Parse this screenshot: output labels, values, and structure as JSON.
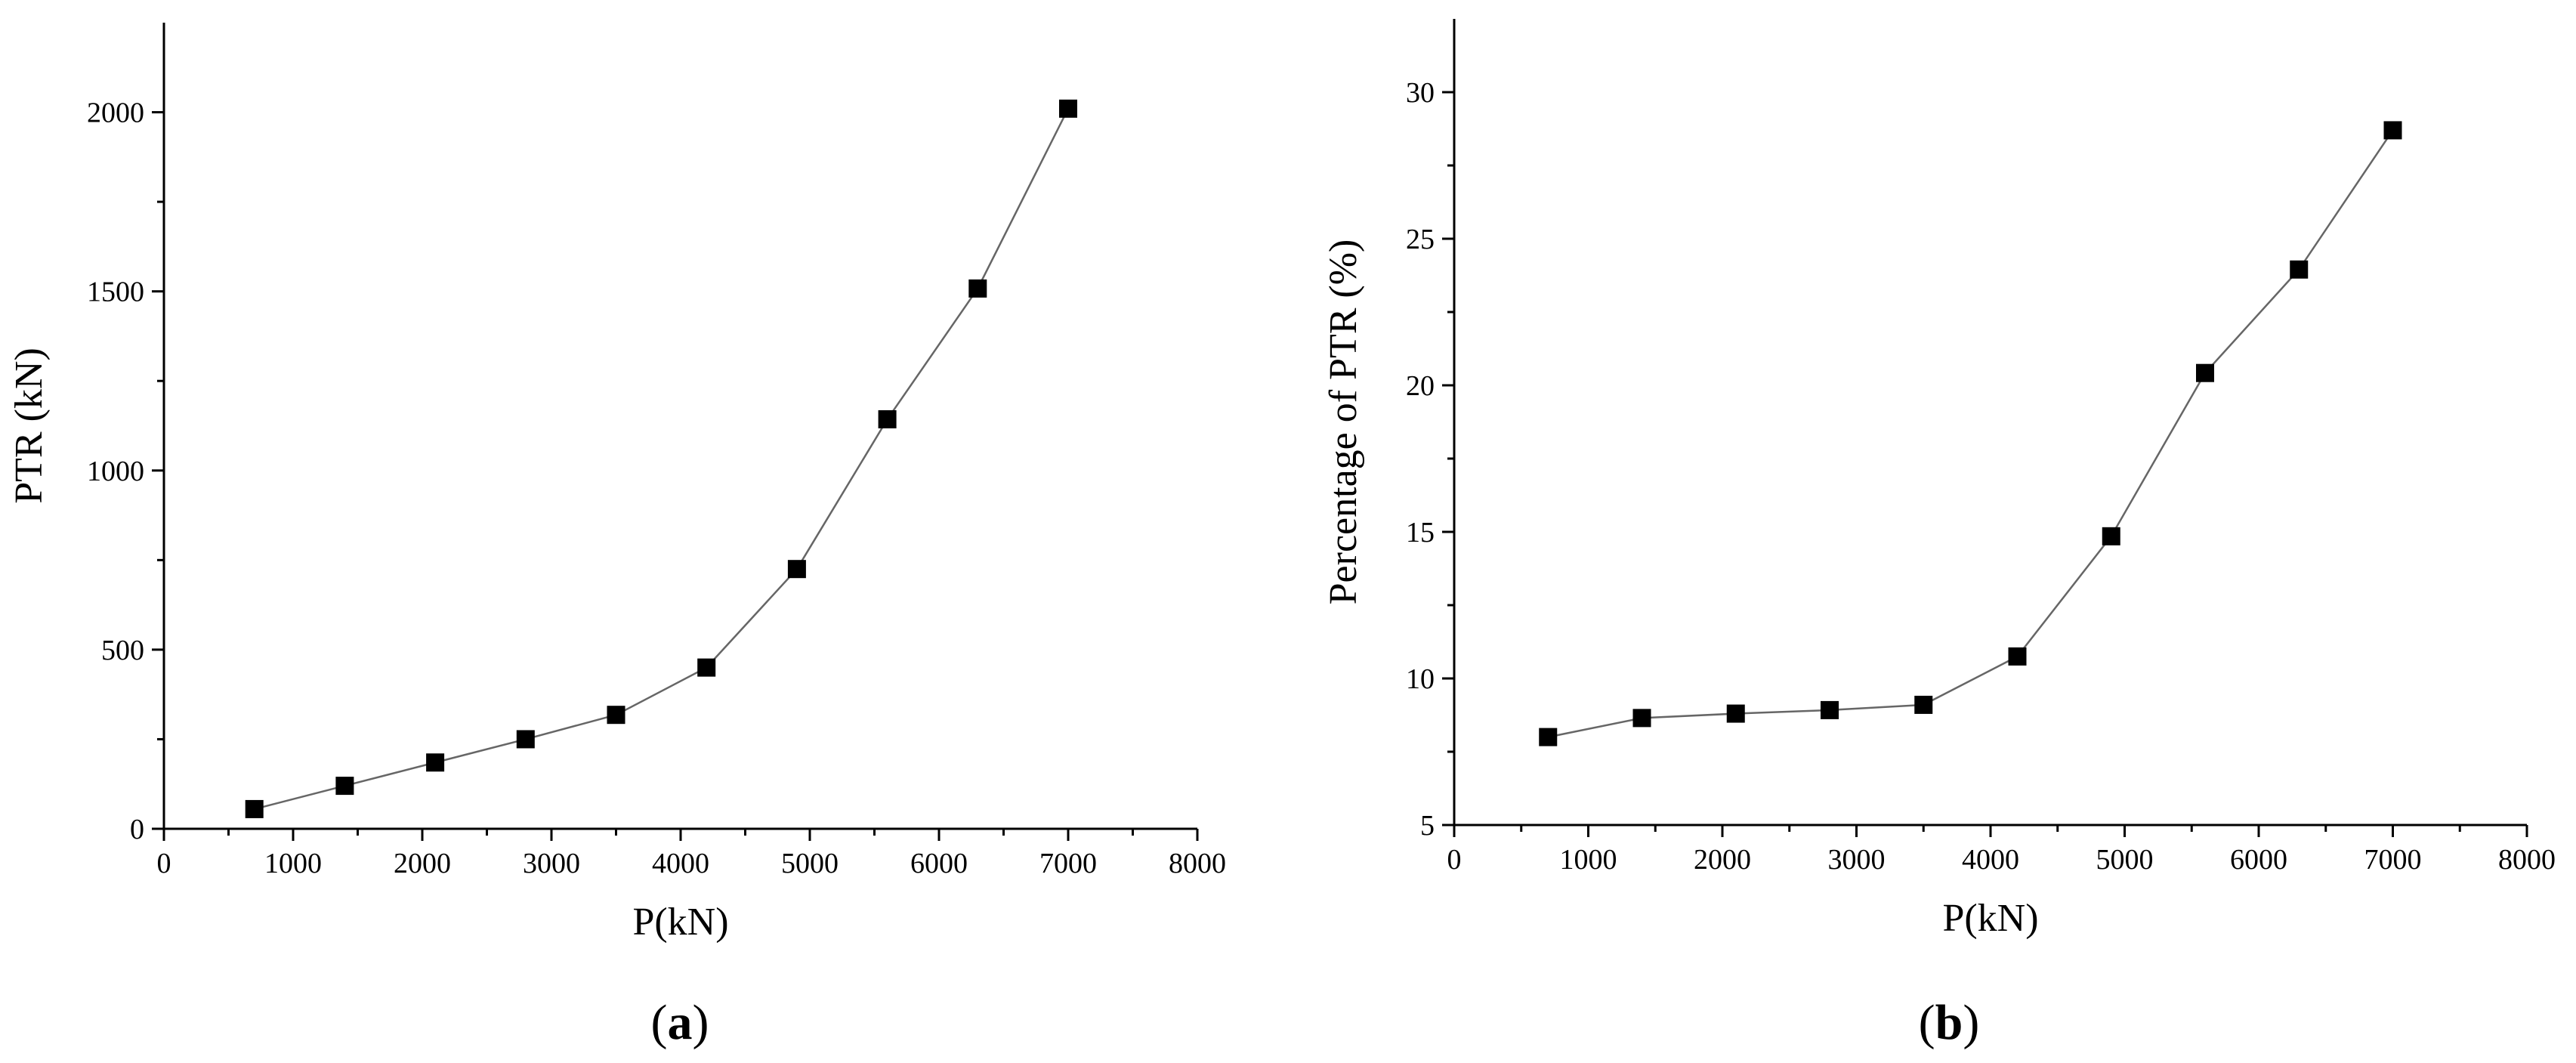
{
  "chart_data": [
    {
      "type": "line",
      "panel_label": "a",
      "xlabel": "P(kN)",
      "ylabel": "PTR (kN)",
      "xlim": [
        0,
        8000
      ],
      "ylim": [
        0,
        2250
      ],
      "x_ticks": [
        0,
        1000,
        2000,
        3000,
        4000,
        5000,
        6000,
        7000,
        8000
      ],
      "y_ticks": [
        0,
        500,
        1000,
        1500,
        2000
      ],
      "grid": false,
      "marker": "square",
      "series": [
        {
          "x": [
            700,
            1400,
            2100,
            2800,
            3500,
            4200,
            4900,
            5600,
            6300,
            7000
          ],
          "y": [
            55,
            120,
            185,
            250,
            318,
            450,
            725,
            1143,
            1508,
            2010
          ]
        }
      ]
    },
    {
      "type": "line",
      "panel_label": "b",
      "xlabel": "P(kN)",
      "ylabel": "Percentage of PTR (%)",
      "xlim": [
        0,
        8000
      ],
      "ylim": [
        5,
        32.5
      ],
      "x_ticks": [
        0,
        1000,
        2000,
        3000,
        4000,
        5000,
        6000,
        7000,
        8000
      ],
      "y_ticks": [
        5,
        10,
        15,
        20,
        25,
        30
      ],
      "grid": false,
      "marker": "square",
      "series": [
        {
          "x": [
            700,
            1400,
            2100,
            2800,
            3500,
            4200,
            4900,
            5600,
            6300,
            7000
          ],
          "y": [
            8.0,
            8.65,
            8.8,
            8.92,
            9.1,
            10.75,
            14.85,
            20.42,
            23.95,
            28.7
          ]
        }
      ]
    }
  ]
}
